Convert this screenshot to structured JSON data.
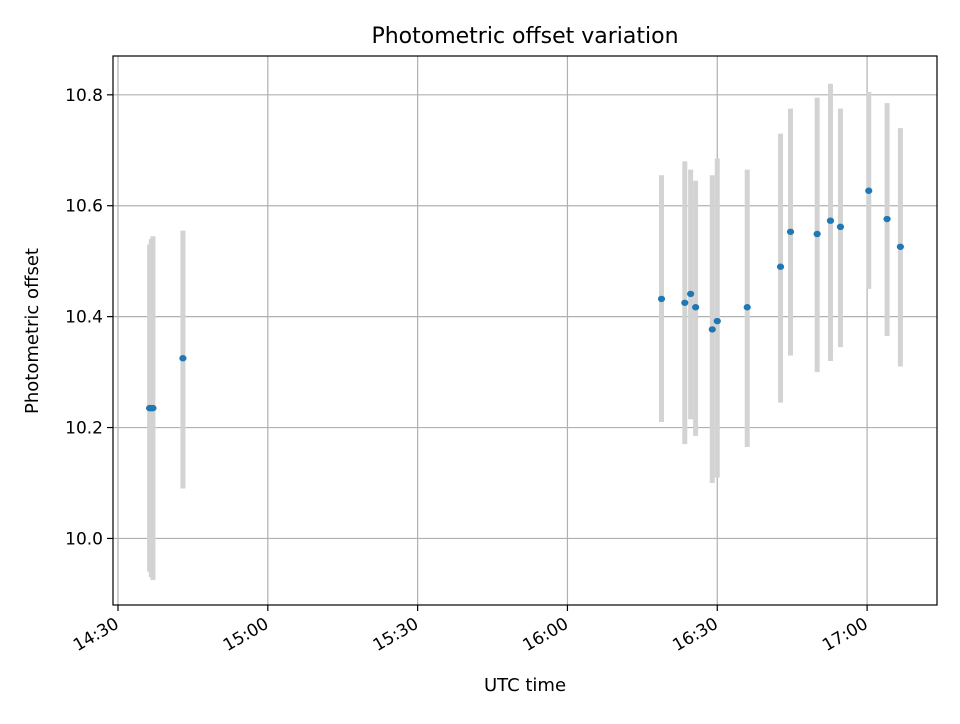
{
  "chart_data": {
    "type": "scatter",
    "title": "Photometric offset variation",
    "xlabel": "UTC time",
    "ylabel": "Photometric offset",
    "x_ticks": [
      "14:30",
      "15:00",
      "15:30",
      "16:00",
      "16:30",
      "17:00"
    ],
    "y_ticks": [
      "10.0",
      "10.2",
      "10.4",
      "10.6",
      "10.8"
    ],
    "x_tick_values": [
      "14:30",
      "15:00",
      "15:30",
      "16:00",
      "16:30",
      "17:00"
    ],
    "y_tick_values": [
      10.0,
      10.2,
      10.4,
      10.6,
      10.8
    ],
    "xlim": [
      "14:29",
      "17:14"
    ],
    "ylim": [
      9.88,
      10.87
    ],
    "grid": true,
    "legend": "none",
    "colors": {
      "points": "#1f77b4",
      "errorbars": "#d3d3d3",
      "grid": "#b0b0b0",
      "axes": "#000000"
    },
    "series": [
      {
        "x": [
          "14:36:20",
          "14:36:40",
          "14:37:00",
          "14:43:00",
          "16:18:50",
          "16:23:30",
          "16:24:40",
          "16:25:40",
          "16:29:00",
          "16:30:00",
          "16:36:00",
          "16:42:40",
          "16:44:40",
          "16:50:00",
          "16:52:40",
          "16:54:40",
          "17:00:20",
          "17:04:00",
          "17:06:40"
        ],
        "y": [
          10.235,
          10.235,
          10.235,
          10.325,
          10.432,
          10.425,
          10.441,
          10.417,
          10.377,
          10.392,
          10.417,
          10.49,
          10.553,
          10.549,
          10.573,
          10.562,
          10.627,
          10.576,
          10.526
        ],
        "yerr_low": [
          9.94,
          9.93,
          9.925,
          10.09,
          10.21,
          10.17,
          10.215,
          10.185,
          10.1,
          10.11,
          10.165,
          10.245,
          10.33,
          10.3,
          10.32,
          10.345,
          10.45,
          10.365,
          10.31
        ],
        "yerr_high": [
          10.53,
          10.54,
          10.545,
          10.555,
          10.655,
          10.68,
          10.665,
          10.645,
          10.655,
          10.685,
          10.665,
          10.73,
          10.775,
          10.795,
          10.82,
          10.775,
          10.805,
          10.785,
          10.74
        ]
      }
    ]
  }
}
